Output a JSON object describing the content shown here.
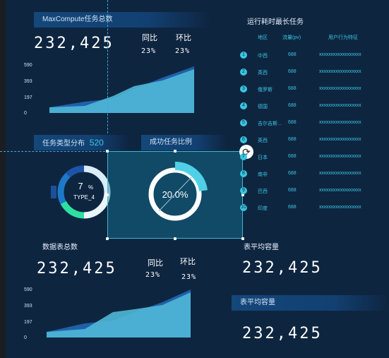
{
  "panel1": {
    "title": "MaxCompute任务总数",
    "total": "232,425",
    "yoy_label": "同比",
    "yoy_value": "23%",
    "mom_label": "环比",
    "mom_value": "23%"
  },
  "area_chart_1": {
    "yticks": [
      "590",
      "393",
      "197",
      "0"
    ]
  },
  "task_type": {
    "title": "任务类型分布",
    "count": "520",
    "pct_num": "7",
    "pct_sign": "%",
    "type_label": "TYPE_4"
  },
  "success": {
    "title": "成功任务比例",
    "value": "20.0%"
  },
  "ranking": {
    "title": "运行耗时最长任务",
    "col_region": "地区",
    "col_flow": "流量(pv)",
    "col_feature": "用户行为特征",
    "rows": [
      {
        "num": "1",
        "region": "中西",
        "flow": "688",
        "feature": "xxxxxxxxxxxxxxxxxx"
      },
      {
        "num": "2",
        "region": "英西",
        "flow": "688",
        "feature": "xxxxxxxxxxxxxxxxxx"
      },
      {
        "num": "3",
        "region": "俄罗斯",
        "flow": "688",
        "feature": "xxxxxxxxxxxxxxxxxx"
      },
      {
        "num": "4",
        "region": "德国",
        "flow": "688",
        "feature": "xxxxxxxxxxxxxxxxxx"
      },
      {
        "num": "5",
        "region": "吉尔吉斯...",
        "flow": "688",
        "feature": "xxxxxxxxxxxxxxxxxx"
      },
      {
        "num": "6",
        "region": "英西",
        "flow": "688",
        "feature": "xxxxxxxxxxxxxxxxxx"
      },
      {
        "num": "7",
        "region": "日本",
        "flow": "688",
        "feature": "xxxxxxxxxxxxxxxxxx"
      },
      {
        "num": "8",
        "region": "南非",
        "flow": "688",
        "feature": "xxxxxxxxxxxxxxxxxx"
      },
      {
        "num": "9",
        "region": "巴西",
        "flow": "688",
        "feature": "xxxxxxxxxxxxxxxxxx"
      },
      {
        "num": "10",
        "region": "印度",
        "flow": "688",
        "feature": "xxxxxxxxxxxxxxxxxx"
      }
    ]
  },
  "panel_tables": {
    "title": "数据表总数",
    "total": "232,425",
    "yoy_label": "同比",
    "yoy_value": "23%",
    "mom_label": "环比",
    "mom_value": "23%"
  },
  "area_chart_2": {
    "yticks": [
      "590",
      "393",
      "197",
      "0"
    ]
  },
  "avg1": {
    "title": "表平均容量",
    "value": "232,425"
  },
  "avg2": {
    "title": "表平均容量",
    "value": "232,425"
  },
  "colors": {
    "background": "#0e2540",
    "accent_cyan": "#3bc6e0",
    "area_light": "#4fb8d6",
    "area_dark": "#2060a8",
    "donut_green": "#2de0a0",
    "donut_blue": "#1e78c8"
  },
  "icons": {
    "rotate": "rotate-icon"
  }
}
